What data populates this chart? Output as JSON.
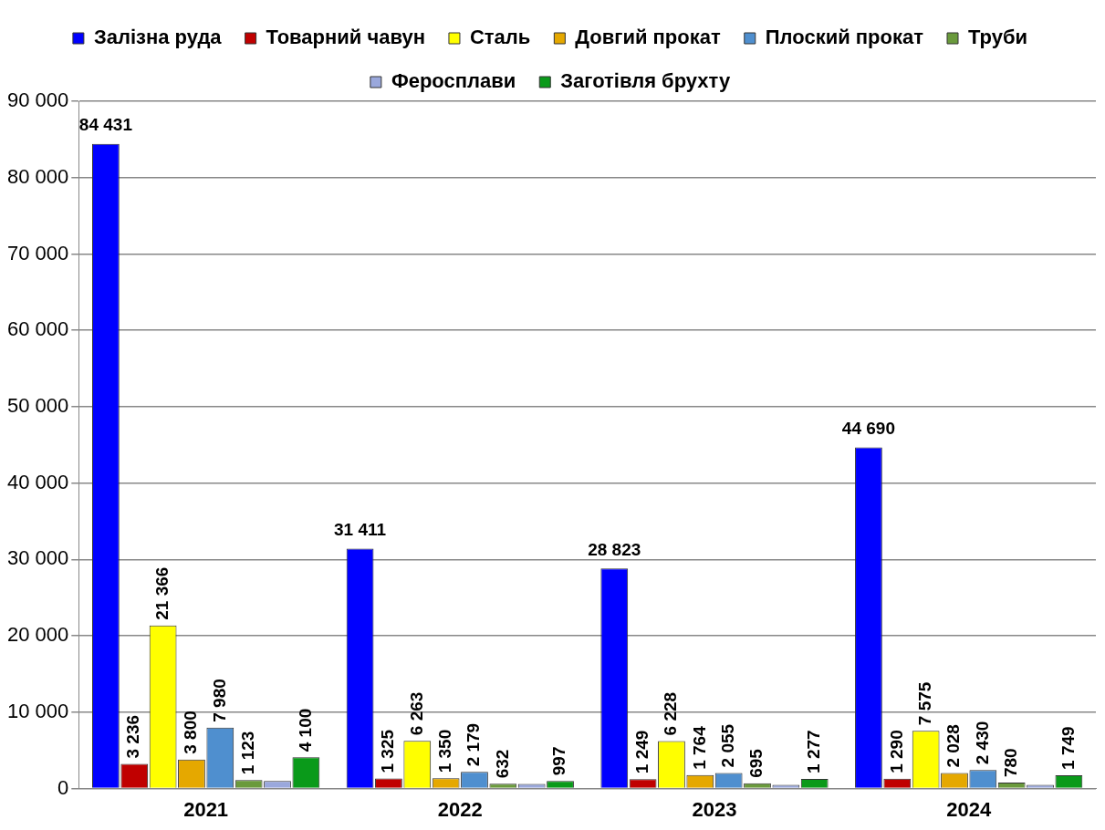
{
  "chart_data": {
    "type": "bar",
    "categories": [
      "2021",
      "2022",
      "2023",
      "2024"
    ],
    "series": [
      {
        "name": "Залізна руда",
        "color": "#0000ff",
        "values": [
          84431,
          31411,
          28823,
          44690
        ],
        "value_labels": [
          "84 431",
          "31 411",
          "28 823",
          "44 690"
        ]
      },
      {
        "name": "Товарний чавун",
        "color": "#c00000",
        "values": [
          3236,
          1325,
          1249,
          1290
        ],
        "value_labels": [
          "3 236",
          "1 325",
          "1 249",
          "1 290"
        ]
      },
      {
        "name": "Сталь",
        "color": "#ffff00",
        "values": [
          21366,
          6263,
          6228,
          7575
        ],
        "value_labels": [
          "21 366",
          "6 263",
          "6 228",
          "7 575"
        ]
      },
      {
        "name": "Довгий прокат",
        "color": "#e5a800",
        "values": [
          3800,
          1350,
          1764,
          2028
        ],
        "value_labels": [
          "3 800",
          "1 350",
          "1 764",
          "2 028"
        ]
      },
      {
        "name": "Плоский прокат",
        "color": "#4f8fcf",
        "values": [
          7980,
          2179,
          2055,
          2430
        ],
        "value_labels": [
          "7 980",
          "2 179",
          "2 055",
          "2 430"
        ]
      },
      {
        "name": "Труби",
        "color": "#6a9a3c",
        "values": [
          1123,
          632,
          695,
          780
        ],
        "value_labels": [
          "1 123",
          "632",
          "695",
          "780"
        ]
      },
      {
        "name": "Феросплави",
        "color": "#9aa8dc",
        "values": [
          1000,
          600,
          500,
          500
        ],
        "value_labels": [
          null,
          null,
          null,
          null
        ]
      },
      {
        "name": "Заготівля брухту",
        "color": "#0a9a1a",
        "values": [
          4100,
          997,
          1277,
          1749
        ],
        "value_labels": [
          "4 100",
          "997",
          "1 277",
          "1 749"
        ]
      }
    ],
    "ylim": [
      0,
      90000
    ],
    "yticks": [
      {
        "value": 0,
        "label": "0"
      },
      {
        "value": 10000,
        "label": "10 000"
      },
      {
        "value": 20000,
        "label": "20 000"
      },
      {
        "value": 30000,
        "label": "30 000"
      },
      {
        "value": 40000,
        "label": "40 000"
      },
      {
        "value": 50000,
        "label": "50 000"
      },
      {
        "value": 60000,
        "label": "60 000"
      },
      {
        "value": 70000,
        "label": "70 000"
      },
      {
        "value": 80000,
        "label": "80 000"
      },
      {
        "value": 90000,
        "label": "90 000"
      }
    ],
    "grid": "y",
    "legend": "top"
  }
}
